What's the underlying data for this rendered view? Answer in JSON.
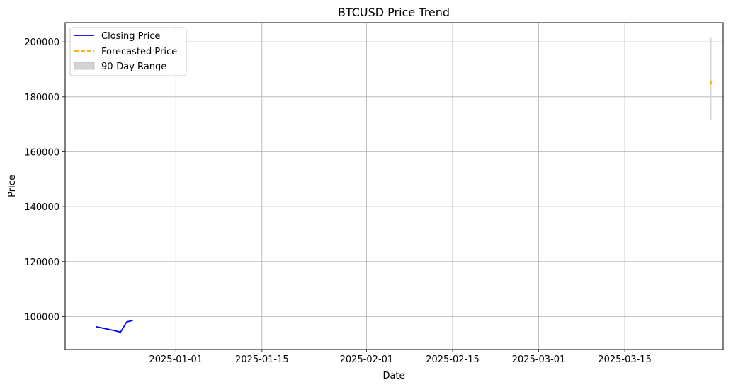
{
  "chart_data": {
    "type": "line",
    "title": "BTCUSD Price Trend",
    "xlabel": "Date",
    "ylabel": "Price",
    "grid": true,
    "legend_position": "upper-left",
    "x_range": [
      "2024-12-14",
      "2025-03-31"
    ],
    "ylim": [
      88000,
      207000
    ],
    "x_ticks": [
      "2025-01-01",
      "2025-01-15",
      "2025-02-01",
      "2025-02-15",
      "2025-03-01",
      "2025-03-15"
    ],
    "y_ticks": [
      100000,
      120000,
      140000,
      160000,
      180000,
      200000
    ],
    "series": [
      {
        "name": "Closing Price",
        "style": "solid",
        "color": "#0000ff",
        "points": [
          {
            "x": "2024-12-19",
            "y": 96300
          },
          {
            "x": "2024-12-22",
            "y": 94900
          },
          {
            "x": "2024-12-23",
            "y": 94300
          },
          {
            "x": "2024-12-24",
            "y": 98000
          },
          {
            "x": "2024-12-25",
            "y": 98600
          }
        ]
      },
      {
        "name": "Forecasted Price",
        "style": "dashed",
        "color": "#ffa500",
        "points": [
          {
            "x": "2025-03-29",
            "y": 184500
          },
          {
            "x": "2025-03-29",
            "y": 185800
          }
        ]
      }
    ],
    "range_band": {
      "name": "90-Day Range",
      "color": "#d3d3d3",
      "x": "2025-03-29",
      "low": 171500,
      "high": 201500
    }
  }
}
